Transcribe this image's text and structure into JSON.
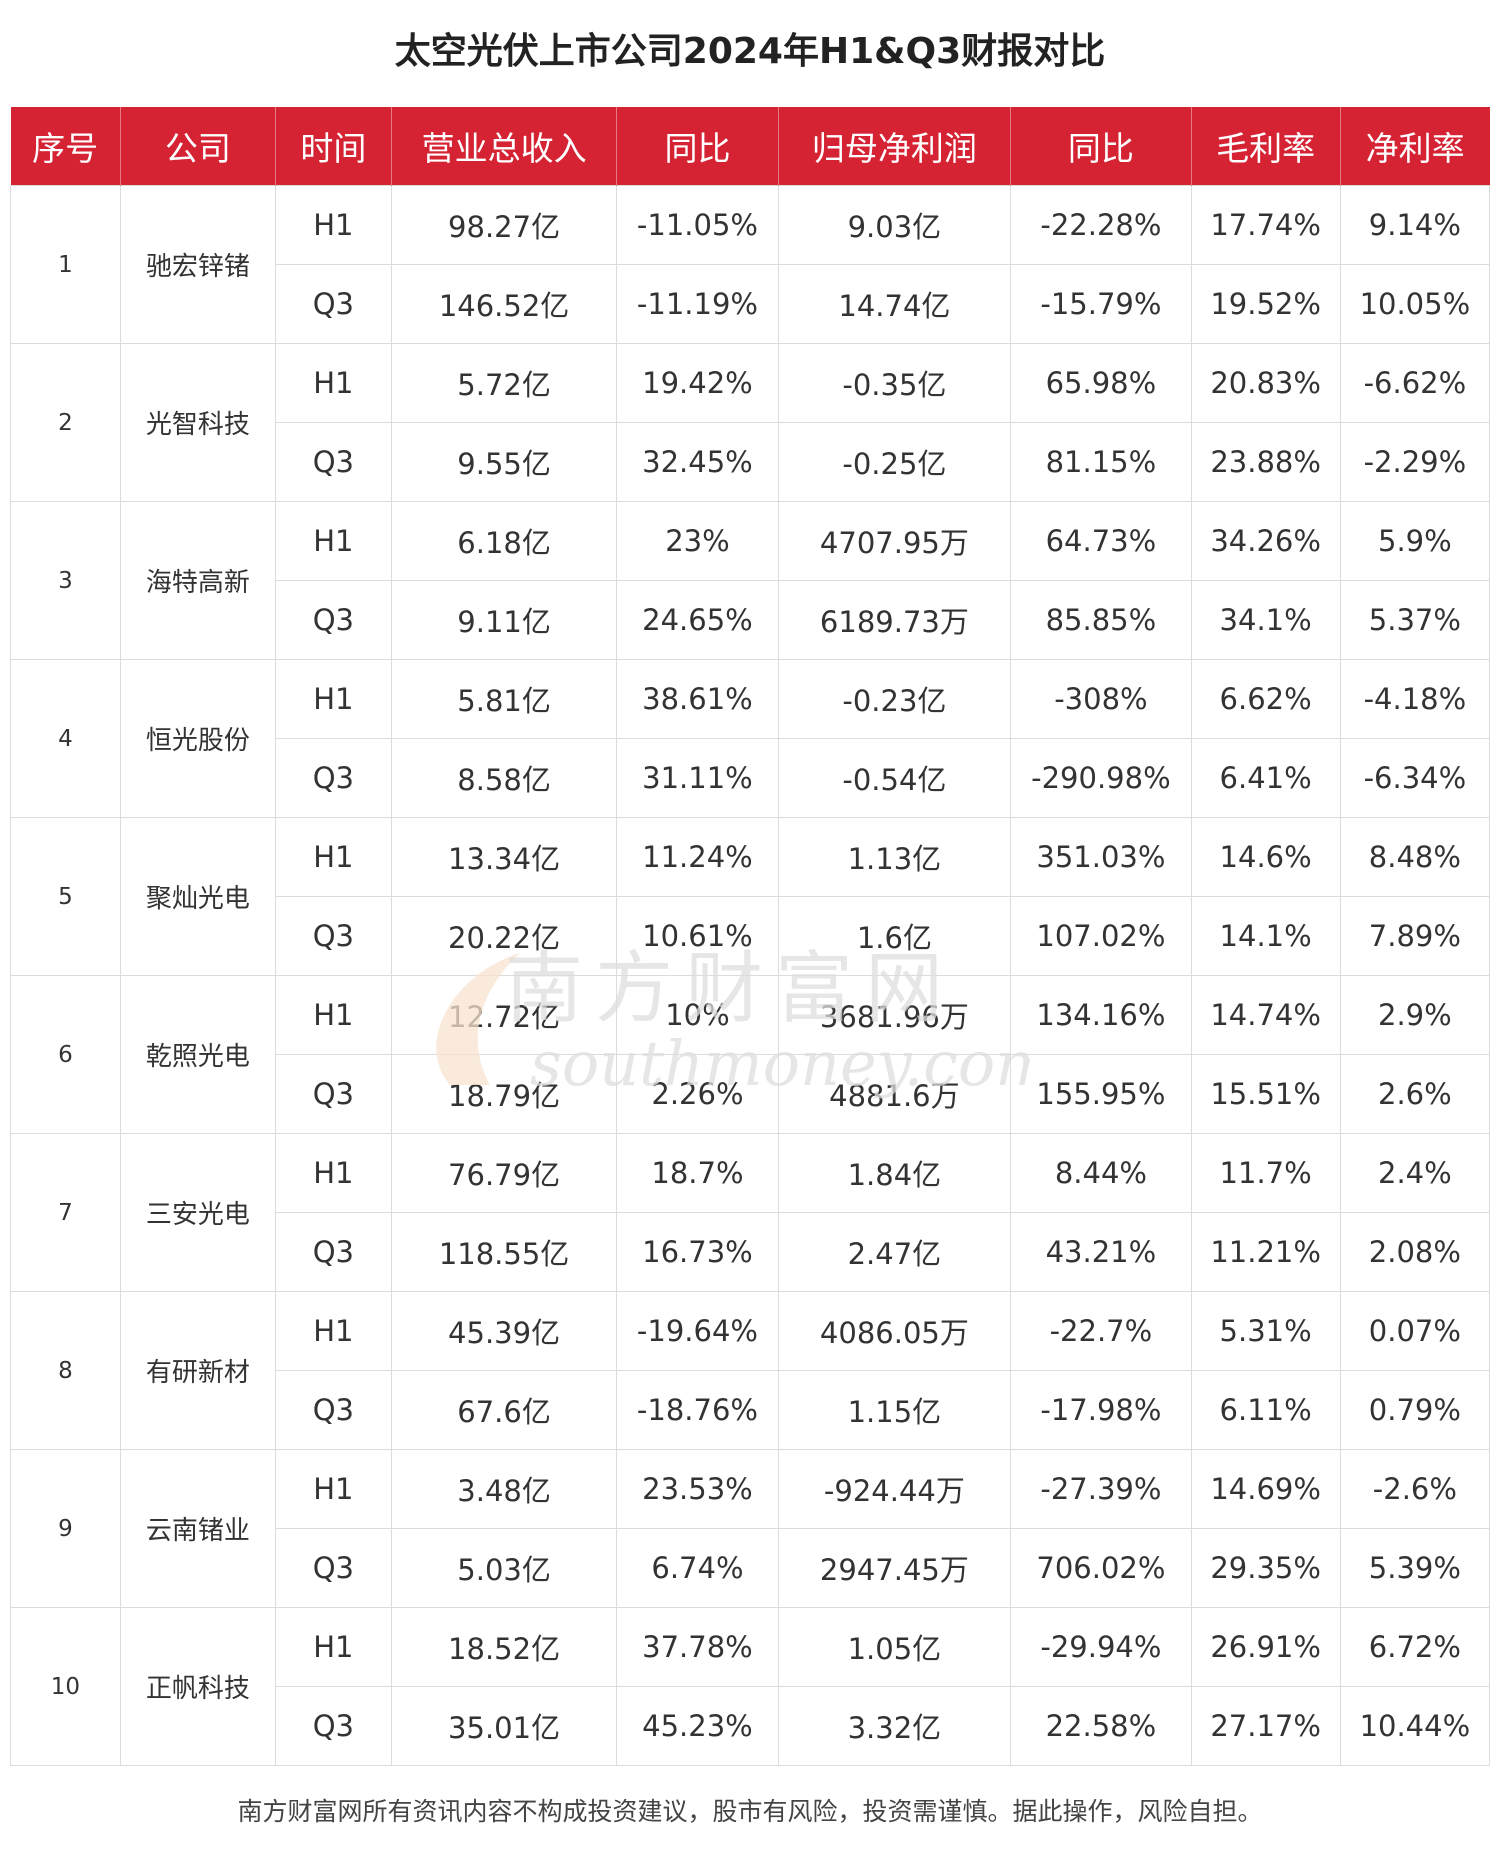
{
  "title": "太空光伏上市公司2024年H1&Q3财报对比",
  "headers": [
    "序号",
    "公司",
    "时间",
    "营业总收入",
    "同比",
    "归母净利润",
    "同比",
    "毛利率",
    "净利率"
  ],
  "companies": [
    {
      "rank": "1",
      "name": "驰宏锌锗",
      "rows": [
        {
          "period": "H1",
          "revenue": "98.27亿",
          "rev_yoy": "-11.05%",
          "profit": "9.03亿",
          "profit_yoy": "-22.28%",
          "gross_margin": "17.74%",
          "net_margin": "9.14%"
        },
        {
          "period": "Q3",
          "revenue": "146.52亿",
          "rev_yoy": "-11.19%",
          "profit": "14.74亿",
          "profit_yoy": "-15.79%",
          "gross_margin": "19.52%",
          "net_margin": "10.05%"
        }
      ]
    },
    {
      "rank": "2",
      "name": "光智科技",
      "rows": [
        {
          "period": "H1",
          "revenue": "5.72亿",
          "rev_yoy": "19.42%",
          "profit": "-0.35亿",
          "profit_yoy": "65.98%",
          "gross_margin": "20.83%",
          "net_margin": "-6.62%"
        },
        {
          "period": "Q3",
          "revenue": "9.55亿",
          "rev_yoy": "32.45%",
          "profit": "-0.25亿",
          "profit_yoy": "81.15%",
          "gross_margin": "23.88%",
          "net_margin": "-2.29%"
        }
      ]
    },
    {
      "rank": "3",
      "name": "海特高新",
      "rows": [
        {
          "period": "H1",
          "revenue": "6.18亿",
          "rev_yoy": "23%",
          "profit": "4707.95万",
          "profit_yoy": "64.73%",
          "gross_margin": "34.26%",
          "net_margin": "5.9%"
        },
        {
          "period": "Q3",
          "revenue": "9.11亿",
          "rev_yoy": "24.65%",
          "profit": "6189.73万",
          "profit_yoy": "85.85%",
          "gross_margin": "34.1%",
          "net_margin": "5.37%"
        }
      ]
    },
    {
      "rank": "4",
      "name": "恒光股份",
      "rows": [
        {
          "period": "H1",
          "revenue": "5.81亿",
          "rev_yoy": "38.61%",
          "profit": "-0.23亿",
          "profit_yoy": "-308%",
          "gross_margin": "6.62%",
          "net_margin": "-4.18%"
        },
        {
          "period": "Q3",
          "revenue": "8.58亿",
          "rev_yoy": "31.11%",
          "profit": "-0.54亿",
          "profit_yoy": "-290.98%",
          "gross_margin": "6.41%",
          "net_margin": "-6.34%"
        }
      ]
    },
    {
      "rank": "5",
      "name": "聚灿光电",
      "rows": [
        {
          "period": "H1",
          "revenue": "13.34亿",
          "rev_yoy": "11.24%",
          "profit": "1.13亿",
          "profit_yoy": "351.03%",
          "gross_margin": "14.6%",
          "net_margin": "8.48%"
        },
        {
          "period": "Q3",
          "revenue": "20.22亿",
          "rev_yoy": "10.61%",
          "profit": "1.6亿",
          "profit_yoy": "107.02%",
          "gross_margin": "14.1%",
          "net_margin": "7.89%"
        }
      ]
    },
    {
      "rank": "6",
      "name": "乾照光电",
      "rows": [
        {
          "period": "H1",
          "revenue": "12.72亿",
          "rev_yoy": "10%",
          "profit": "3681.96万",
          "profit_yoy": "134.16%",
          "gross_margin": "14.74%",
          "net_margin": "2.9%"
        },
        {
          "period": "Q3",
          "revenue": "18.79亿",
          "rev_yoy": "2.26%",
          "profit": "4881.6万",
          "profit_yoy": "155.95%",
          "gross_margin": "15.51%",
          "net_margin": "2.6%"
        }
      ]
    },
    {
      "rank": "7",
      "name": "三安光电",
      "rows": [
        {
          "period": "H1",
          "revenue": "76.79亿",
          "rev_yoy": "18.7%",
          "profit": "1.84亿",
          "profit_yoy": "8.44%",
          "gross_margin": "11.7%",
          "net_margin": "2.4%"
        },
        {
          "period": "Q3",
          "revenue": "118.55亿",
          "rev_yoy": "16.73%",
          "profit": "2.47亿",
          "profit_yoy": "43.21%",
          "gross_margin": "11.21%",
          "net_margin": "2.08%"
        }
      ]
    },
    {
      "rank": "8",
      "name": "有研新材",
      "rows": [
        {
          "period": "H1",
          "revenue": "45.39亿",
          "rev_yoy": "-19.64%",
          "profit": "4086.05万",
          "profit_yoy": "-22.7%",
          "gross_margin": "5.31%",
          "net_margin": "0.07%"
        },
        {
          "period": "Q3",
          "revenue": "67.6亿",
          "rev_yoy": "-18.76%",
          "profit": "1.15亿",
          "profit_yoy": "-17.98%",
          "gross_margin": "6.11%",
          "net_margin": "0.79%"
        }
      ]
    },
    {
      "rank": "9",
      "name": "云南锗业",
      "rows": [
        {
          "period": "H1",
          "revenue": "3.48亿",
          "rev_yoy": "23.53%",
          "profit": "-924.44万",
          "profit_yoy": "-27.39%",
          "gross_margin": "14.69%",
          "net_margin": "-2.6%"
        },
        {
          "period": "Q3",
          "revenue": "5.03亿",
          "rev_yoy": "6.74%",
          "profit": "2947.45万",
          "profit_yoy": "706.02%",
          "gross_margin": "29.35%",
          "net_margin": "5.39%"
        }
      ]
    },
    {
      "rank": "10",
      "name": "正帆科技",
      "rows": [
        {
          "period": "H1",
          "revenue": "18.52亿",
          "rev_yoy": "37.78%",
          "profit": "1.05亿",
          "profit_yoy": "-29.94%",
          "gross_margin": "26.91%",
          "net_margin": "6.72%"
        },
        {
          "period": "Q3",
          "revenue": "35.01亿",
          "rev_yoy": "45.23%",
          "profit": "3.32亿",
          "profit_yoy": "22.58%",
          "gross_margin": "27.17%",
          "net_margin": "10.44%"
        }
      ]
    }
  ],
  "watermark": {
    "cn": "南方财富网",
    "en": "southmoney.com"
  },
  "footer": "南方财富网所有资讯内容不构成投资建议，股市有风险，投资需谨慎。据此操作，风险自担。",
  "colors": {
    "header_bg": "#d62333",
    "header_text": "#ffffff",
    "grid": "#dcdcdc"
  }
}
